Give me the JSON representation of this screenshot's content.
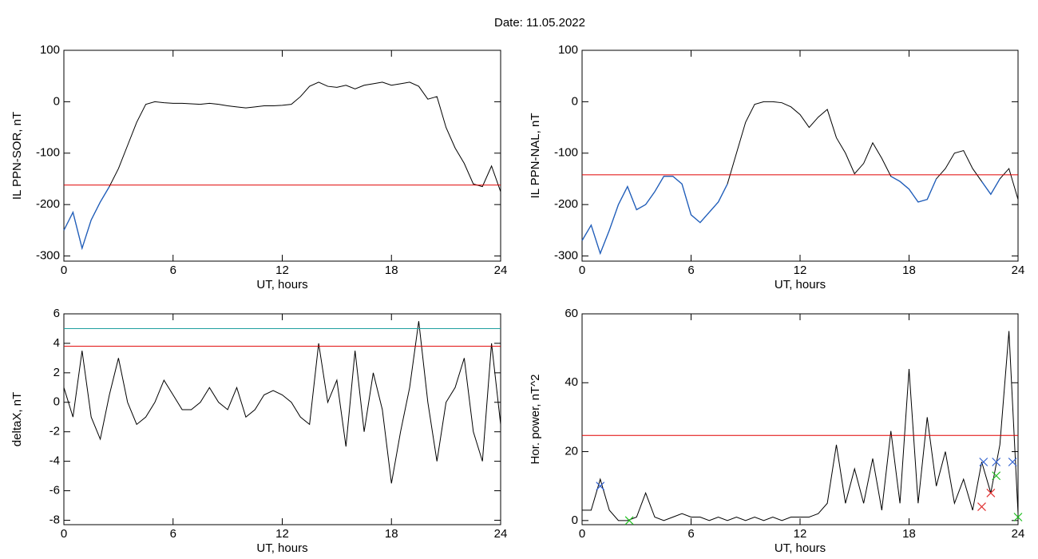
{
  "title": "Date:  11.05.2022",
  "chart_data": [
    {
      "type": "line",
      "xlabel": "UT, hours",
      "ylabel": "IL PPN-SOR, nT",
      "xlim": [
        0,
        24
      ],
      "xticks": [
        0,
        6,
        12,
        18,
        24
      ],
      "ylim": [
        -310,
        100
      ],
      "yticks": [
        100,
        0,
        -100,
        -200,
        -300
      ],
      "x": [
        0,
        0.5,
        1,
        1.5,
        2,
        2.5,
        3,
        3.5,
        4,
        4.5,
        5,
        5.5,
        6,
        6.5,
        7,
        7.5,
        8,
        8.5,
        9,
        9.5,
        10,
        10.5,
        11,
        11.5,
        12,
        12.5,
        13,
        13.5,
        14,
        14.5,
        15,
        15.5,
        16,
        16.5,
        17,
        17.5,
        18,
        18.5,
        19,
        19.5,
        20,
        20.5,
        21,
        21.5,
        22,
        22.5,
        23,
        23.5,
        24
      ],
      "series": [
        {
          "color": "#000000",
          "below_color": "#1f5fbf",
          "values": [
            -250,
            -215,
            -285,
            -230,
            -195,
            -165,
            -130,
            -85,
            -40,
            -5,
            0,
            -2,
            -3,
            -3,
            -4,
            -5,
            -3,
            -5,
            -8,
            -10,
            -12,
            -10,
            -8,
            -8,
            -7,
            -5,
            10,
            30,
            38,
            30,
            28,
            32,
            25,
            32,
            35,
            38,
            32,
            35,
            38,
            30,
            5,
            10,
            -50,
            -90,
            -120,
            -160,
            -165,
            -125,
            -175
          ]
        }
      ],
      "hlines": [
        {
          "value": -162,
          "color": "#e00000"
        }
      ]
    },
    {
      "type": "line",
      "xlabel": "UT, hours",
      "ylabel": "IL PPN-NAL, nT",
      "xlim": [
        0,
        24
      ],
      "xticks": [
        0,
        6,
        12,
        18,
        24
      ],
      "ylim": [
        -310,
        100
      ],
      "yticks": [
        100,
        0,
        -100,
        -200,
        -300
      ],
      "x": [
        0,
        0.5,
        1,
        1.5,
        2,
        2.5,
        3,
        3.5,
        4,
        4.5,
        5,
        5.5,
        6,
        6.5,
        7,
        7.5,
        8,
        8.5,
        9,
        9.5,
        10,
        10.5,
        11,
        11.5,
        12,
        12.5,
        13,
        13.5,
        14,
        14.5,
        15,
        15.5,
        16,
        16.5,
        17,
        17.5,
        18,
        18.5,
        19,
        19.5,
        20,
        20.5,
        21,
        21.5,
        22,
        22.5,
        23,
        23.5,
        24
      ],
      "series": [
        {
          "color": "#000000",
          "below_color": "#1f5fbf",
          "values": [
            -270,
            -240,
            -295,
            -250,
            -200,
            -165,
            -210,
            -200,
            -175,
            -145,
            -145,
            -160,
            -220,
            -235,
            -215,
            -195,
            -160,
            -100,
            -40,
            -5,
            0,
            0,
            -2,
            -10,
            -25,
            -50,
            -30,
            -15,
            -70,
            -100,
            -140,
            -120,
            -80,
            -110,
            -145,
            -155,
            -170,
            -195,
            -190,
            -150,
            -130,
            -100,
            -95,
            -130,
            -155,
            -180,
            -150,
            -130,
            -190
          ]
        }
      ],
      "hlines": [
        {
          "value": -142,
          "color": "#e00000"
        }
      ]
    },
    {
      "type": "line",
      "xlabel": "UT, hours",
      "ylabel": "deltaX, nT",
      "xlim": [
        0,
        24
      ],
      "xticks": [
        0,
        6,
        12,
        18,
        24
      ],
      "ylim": [
        -8.3,
        6
      ],
      "yticks": [
        6,
        4,
        2,
        0,
        -2,
        -4,
        -6,
        -8
      ],
      "x": [
        0,
        0.5,
        1,
        1.5,
        2,
        2.5,
        3,
        3.5,
        4,
        4.5,
        5,
        5.5,
        6,
        6.5,
        7,
        7.5,
        8,
        8.5,
        9,
        9.5,
        10,
        10.5,
        11,
        11.5,
        12,
        12.5,
        13,
        13.5,
        14,
        14.5,
        15,
        15.5,
        16,
        16.5,
        17,
        17.5,
        18,
        18.5,
        19,
        19.5,
        20,
        20.5,
        21,
        21.5,
        22,
        22.5,
        23,
        23.5,
        24
      ],
      "series": [
        {
          "color": "#000000",
          "values": [
            1,
            -1,
            3.5,
            -1,
            -2.5,
            0.5,
            3,
            0,
            -1.5,
            -1,
            0,
            1.5,
            0.5,
            -0.5,
            -0.5,
            0,
            1,
            0,
            -0.5,
            1,
            -1,
            -0.5,
            0.5,
            0.8,
            0.5,
            0,
            -1,
            -1.5,
            4,
            0,
            1.5,
            -3,
            3.5,
            -2,
            2,
            -0.5,
            -5.5,
            -2,
            1,
            5.5,
            0,
            -4,
            0,
            1,
            3,
            -2,
            -4,
            4,
            -1.5
          ]
        }
      ],
      "hlines": [
        {
          "value": 3.8,
          "color": "#e00000"
        },
        {
          "value": 5.0,
          "color": "#1f9f9f"
        }
      ]
    },
    {
      "type": "line",
      "xlabel": "UT, hours",
      "ylabel": "Hor. power, nT^2",
      "xlim": [
        0,
        24
      ],
      "xticks": [
        0,
        6,
        12,
        18,
        24
      ],
      "ylim": [
        -1.2,
        60
      ],
      "yticks": [
        0,
        20,
        40,
        60
      ],
      "x": [
        0,
        0.5,
        1,
        1.5,
        2,
        2.5,
        3,
        3.5,
        4,
        4.5,
        5,
        5.5,
        6,
        6.5,
        7,
        7.5,
        8,
        8.5,
        9,
        9.5,
        10,
        10.5,
        11,
        11.5,
        12,
        12.5,
        13,
        13.5,
        14,
        14.5,
        15,
        15.5,
        16,
        16.5,
        17,
        17.5,
        18,
        18.5,
        19,
        19.5,
        20,
        20.5,
        21,
        21.5,
        22,
        22.5,
        23,
        23.5,
        24
      ],
      "series": [
        {
          "color": "#000000",
          "values": [
            3,
            3,
            12,
            3,
            0,
            0,
            1,
            8,
            1,
            0,
            1,
            2,
            1,
            1,
            0,
            1,
            0,
            1,
            0,
            1,
            0,
            1,
            0,
            1,
            1,
            1,
            2,
            5,
            22,
            5,
            15,
            5,
            18,
            3,
            26,
            5,
            44,
            5,
            30,
            10,
            20,
            5,
            12,
            3,
            17,
            8,
            22,
            55,
            2
          ]
        }
      ],
      "hlines": [
        {
          "value": 24.7,
          "color": "#e00000"
        }
      ],
      "markers": [
        {
          "color": "#3060d0",
          "x": [
            1,
            22.1,
            22.8,
            23.7
          ],
          "values": [
            10,
            17,
            17,
            17
          ]
        },
        {
          "color": "#20c020",
          "x": [
            2.6,
            22.8,
            24
          ],
          "values": [
            0,
            13,
            1
          ]
        },
        {
          "color": "#e03030",
          "x": [
            22,
            22.5
          ],
          "values": [
            4,
            8
          ]
        }
      ]
    }
  ]
}
